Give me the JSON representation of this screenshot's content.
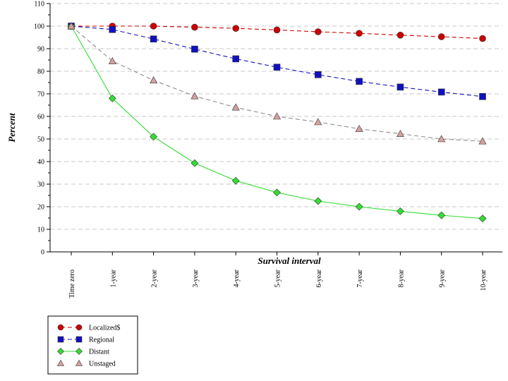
{
  "chart_data": {
    "type": "line",
    "title": "",
    "xlabel": "Survival interval",
    "ylabel": "Percent",
    "ylim": [
      0,
      110
    ],
    "yticks": [
      0,
      10,
      20,
      30,
      40,
      50,
      60,
      70,
      80,
      90,
      100,
      110
    ],
    "grid": "horizontal dashed",
    "categories": [
      "Time zero",
      "1-year",
      "2-year",
      "3-year",
      "4-year",
      "5-year",
      "6-year",
      "7-year",
      "8-year",
      "9-year",
      "10-year"
    ],
    "series": [
      {
        "name": "Localized$",
        "color": "#cc0000",
        "line_color": "#cc0000",
        "dash": "dashed",
        "marker": "circle",
        "values": [
          100,
          100,
          100,
          99.5,
          99,
          98.3,
          97.5,
          96.8,
          96,
          95.3,
          94.5
        ]
      },
      {
        "name": "Regional",
        "color": "#1010c0",
        "line_color": "#1010c0",
        "dash": "dashed",
        "marker": "square",
        "values": [
          100,
          98.5,
          94.3,
          89.8,
          85.5,
          81.8,
          78.5,
          75.5,
          73,
          70.8,
          68.8
        ]
      },
      {
        "name": "Distant",
        "color": "#33dd33",
        "line_color": "#33dd33",
        "dash": "solid",
        "marker": "diamond",
        "values": [
          100,
          68,
          51,
          39.3,
          31.5,
          26.3,
          22.5,
          20,
          18,
          16.2,
          14.8
        ]
      },
      {
        "name": "Unstaged",
        "color": "#d9a0a0",
        "line_color": "#8c8c8c",
        "dash": "dashed",
        "marker": "triangle",
        "values": [
          100,
          84.5,
          76,
          69,
          64,
          60,
          57.5,
          54.5,
          52.3,
          50,
          49
        ]
      }
    ],
    "legend": "bottom-left"
  }
}
